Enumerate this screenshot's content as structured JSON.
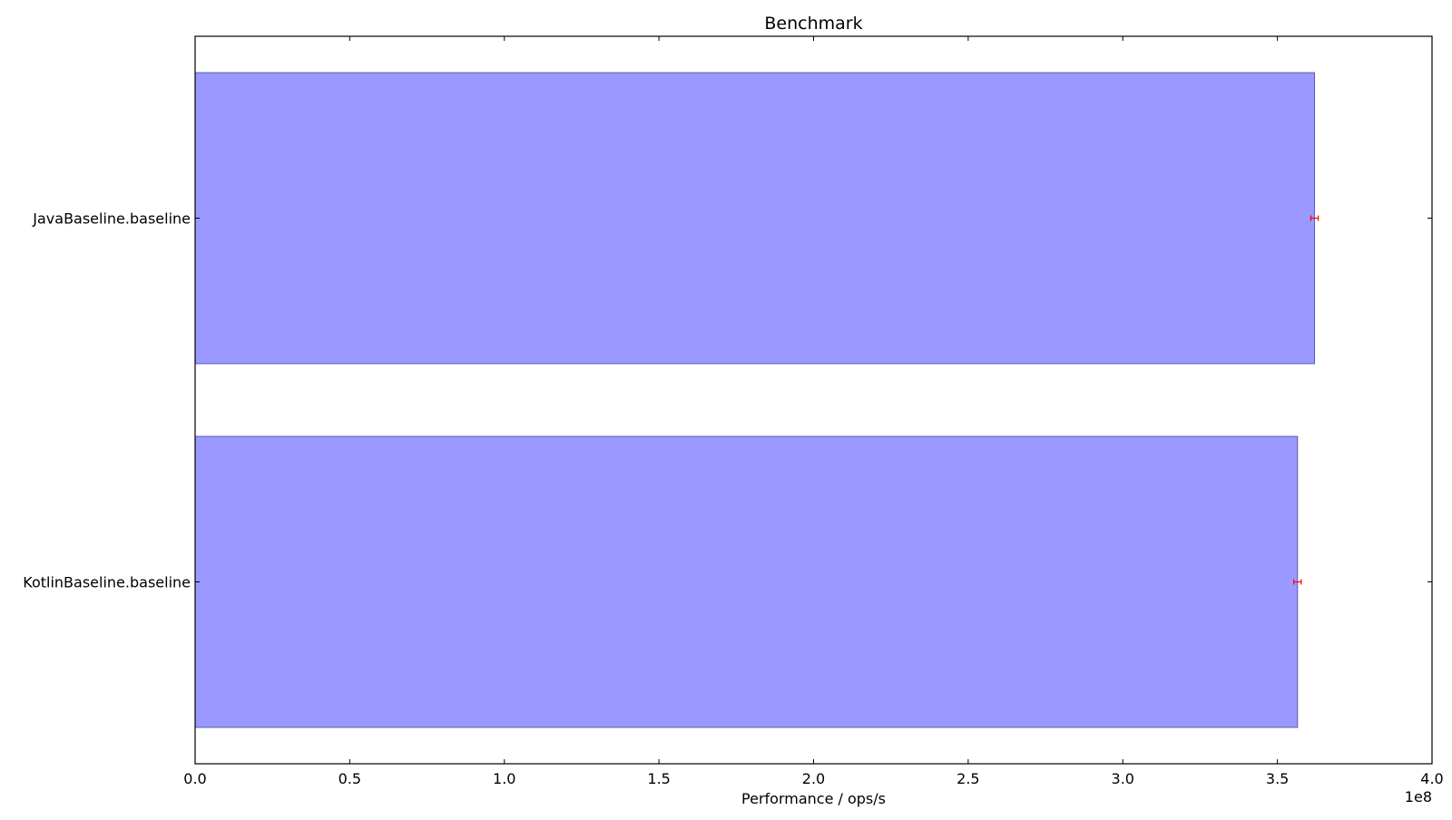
{
  "chart_data": {
    "type": "bar",
    "orientation": "horizontal",
    "title": "Benchmark",
    "xlabel": "Performance / ops/s",
    "ylabel": "",
    "x_offset_label": "1e8",
    "xlim": [
      0,
      4.0
    ],
    "x_scale_factor": 100000000,
    "x_ticks": [
      0.0,
      0.5,
      1.0,
      1.5,
      2.0,
      2.5,
      3.0,
      3.5,
      4.0
    ],
    "x_tick_labels": [
      "0.0",
      "0.5",
      "1.0",
      "1.5",
      "2.0",
      "2.5",
      "3.0",
      "3.5",
      "4.0"
    ],
    "categories": [
      "JavaBaseline.baseline",
      "KotlinBaseline.baseline"
    ],
    "values": [
      3.62,
      3.565
    ],
    "errors": [
      0.012,
      0.012
    ],
    "grid": false,
    "colors": {
      "bar_fill": "#9999ff",
      "bar_edge": "#5c5cb0",
      "error_bar": "#ff0000",
      "axis": "#000000"
    }
  }
}
